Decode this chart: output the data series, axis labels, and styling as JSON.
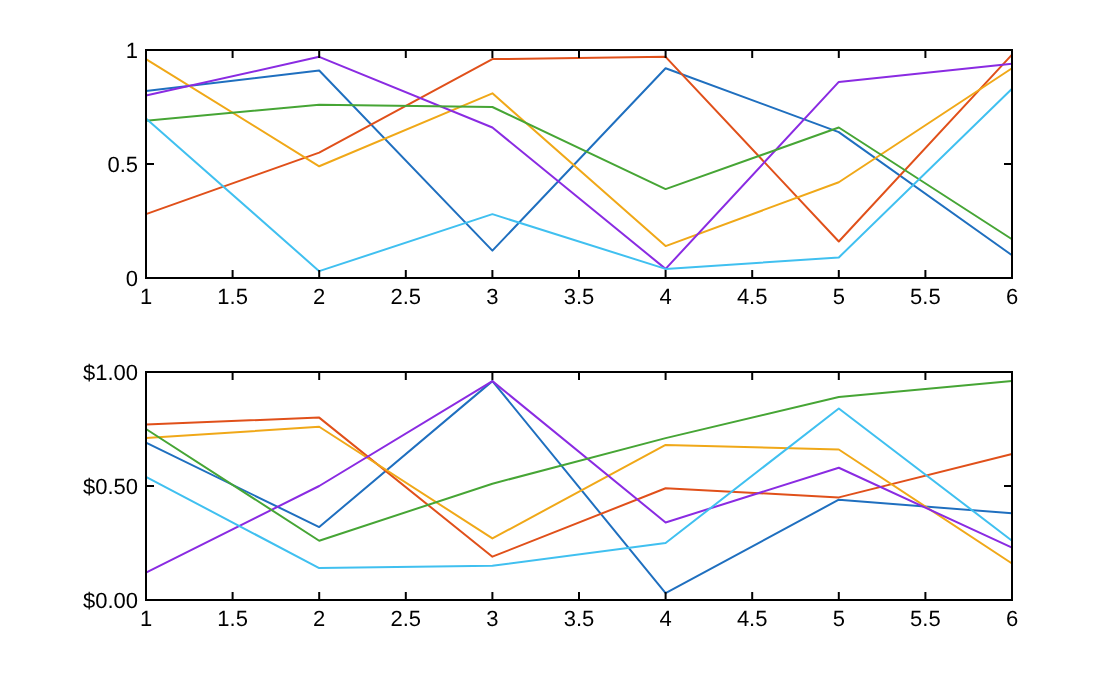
{
  "chart_data": [
    {
      "type": "line",
      "x": [
        1,
        2,
        3,
        4,
        5,
        6
      ],
      "xlim": [
        1,
        6
      ],
      "xticks": [
        1,
        1.5,
        2,
        2.5,
        3,
        3.5,
        4,
        4.5,
        5,
        5.5,
        6
      ],
      "ylim": [
        0,
        1
      ],
      "yticks": [
        0,
        0.5,
        1
      ],
      "marker": "none",
      "line_style": "solid",
      "series": [
        {
          "color": "#1f6fbf",
          "values": [
            0.82,
            0.91,
            0.12,
            0.92,
            0.64,
            0.1
          ]
        },
        {
          "color": "#e0501a",
          "values": [
            0.28,
            0.55,
            0.96,
            0.97,
            0.16,
            0.98
          ]
        },
        {
          "color": "#f0a818",
          "values": [
            0.96,
            0.49,
            0.81,
            0.14,
            0.42,
            0.92
          ]
        },
        {
          "color": "#8a2be2",
          "values": [
            0.8,
            0.97,
            0.66,
            0.04,
            0.86,
            0.94
          ]
        },
        {
          "color": "#46a535",
          "values": [
            0.69,
            0.76,
            0.75,
            0.39,
            0.66,
            0.17
          ]
        },
        {
          "color": "#40c0f0",
          "values": [
            0.7,
            0.03,
            0.28,
            0.04,
            0.09,
            0.83
          ]
        }
      ]
    },
    {
      "type": "line",
      "x": [
        1,
        2,
        3,
        4,
        5,
        6
      ],
      "xlim": [
        1,
        6
      ],
      "xticks": [
        1,
        1.5,
        2,
        2.5,
        3,
        3.5,
        4,
        4.5,
        5,
        5.5,
        6
      ],
      "ylim": [
        0,
        1
      ],
      "yticks": [
        {
          "value": 0,
          "label": "$0.00"
        },
        {
          "value": 0.5,
          "label": "$0.50"
        },
        {
          "value": 1,
          "label": "$1.00"
        }
      ],
      "marker": "none",
      "line_style": "solid",
      "series": [
        {
          "color": "#1f6fbf",
          "values": [
            0.69,
            0.32,
            0.96,
            0.03,
            0.44,
            0.38
          ]
        },
        {
          "color": "#e0501a",
          "values": [
            0.77,
            0.8,
            0.19,
            0.49,
            0.45,
            0.64
          ]
        },
        {
          "color": "#f0a818",
          "values": [
            0.71,
            0.76,
            0.27,
            0.68,
            0.66,
            0.16
          ]
        },
        {
          "color": "#8a2be2",
          "values": [
            0.12,
            0.5,
            0.96,
            0.34,
            0.58,
            0.23
          ]
        },
        {
          "color": "#46a535",
          "values": [
            0.75,
            0.26,
            0.51,
            0.71,
            0.89,
            0.96
          ]
        },
        {
          "color": "#40c0f0",
          "values": [
            0.54,
            0.14,
            0.15,
            0.25,
            0.84,
            0.26
          ]
        }
      ]
    }
  ]
}
